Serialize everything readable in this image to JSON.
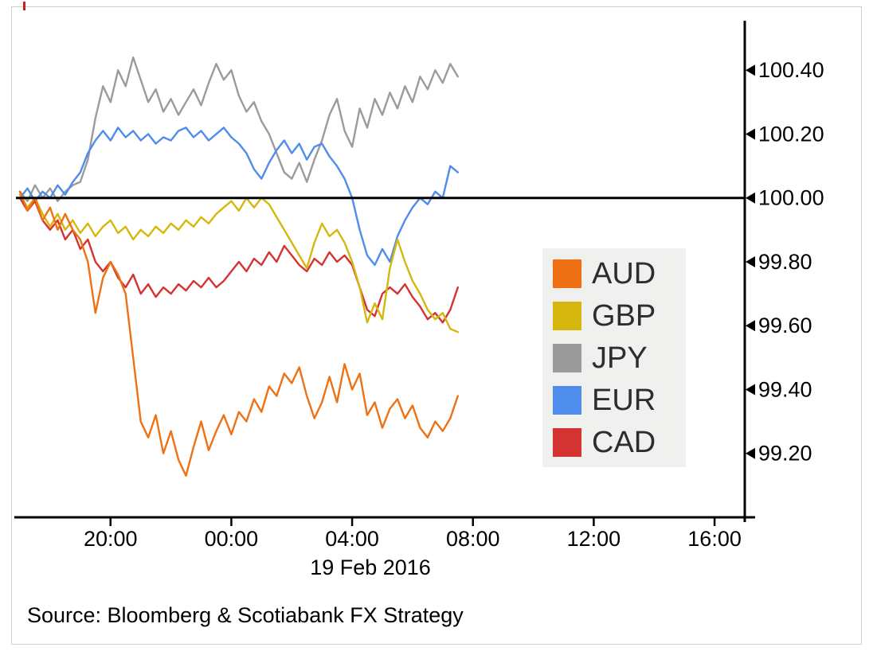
{
  "source_text": "Source: Bloomberg & Scotiabank FX Strategy",
  "chart_data": {
    "type": "line",
    "title": "",
    "xlabel": "19 Feb 2016",
    "ylabel": "",
    "x_axis": {
      "domain_hours": [
        0,
        24
      ],
      "start_time_of_day": "17:00",
      "step_hours": 0.25,
      "ticks": [
        {
          "hour": 3,
          "label": "20:00"
        },
        {
          "hour": 7,
          "label": "00:00"
        },
        {
          "hour": 11,
          "label": "04:00"
        },
        {
          "hour": 15,
          "label": "08:00"
        },
        {
          "hour": 19,
          "label": "12:00"
        },
        {
          "hour": 23,
          "label": "16:00"
        }
      ],
      "date_label": "19 Feb 2016"
    },
    "ylim": [
      99.0,
      100.545
    ],
    "y_ticks": [
      {
        "value": 99.2,
        "label": "99.20"
      },
      {
        "value": 99.4,
        "label": "99.40"
      },
      {
        "value": 99.6,
        "label": "99.60"
      },
      {
        "value": 99.8,
        "label": "99.80"
      },
      {
        "value": 100.0,
        "label": "100.00"
      },
      {
        "value": 100.2,
        "label": "100.20"
      },
      {
        "value": 100.4,
        "label": "100.40"
      }
    ],
    "baseline": {
      "value": 100.0,
      "color": "#000000"
    },
    "grid": false,
    "legend_position": "middle-right",
    "draw_order": [
      2,
      3,
      4,
      1,
      0
    ],
    "series": [
      {
        "name": "AUD",
        "color": "#ee7113",
        "values": [
          100.02,
          99.96,
          100.0,
          99.93,
          99.97,
          99.9,
          99.95,
          99.9,
          99.87,
          99.8,
          99.64,
          99.75,
          99.8,
          99.76,
          99.7,
          99.5,
          99.3,
          99.25,
          99.32,
          99.2,
          99.27,
          99.18,
          99.13,
          99.22,
          99.3,
          99.21,
          99.27,
          99.32,
          99.26,
          99.33,
          99.3,
          99.37,
          99.33,
          99.41,
          99.38,
          99.45,
          99.42,
          99.47,
          99.38,
          99.31,
          99.36,
          99.44,
          99.36,
          99.48,
          99.4,
          99.45,
          99.32,
          99.36,
          99.28,
          99.34,
          99.37,
          99.31,
          99.35,
          99.28,
          99.25,
          99.3,
          99.27,
          99.31,
          99.38
        ]
      },
      {
        "name": "GBP",
        "color": "#d5b70e",
        "values": [
          100.01,
          99.97,
          100.0,
          99.95,
          99.91,
          99.95,
          99.9,
          99.93,
          99.89,
          99.92,
          99.88,
          99.91,
          99.93,
          99.89,
          99.91,
          99.87,
          99.9,
          99.88,
          99.91,
          99.89,
          99.92,
          99.9,
          99.93,
          99.91,
          99.94,
          99.92,
          99.95,
          99.97,
          99.99,
          99.96,
          100.0,
          99.97,
          100.0,
          99.98,
          99.94,
          99.9,
          99.86,
          99.82,
          99.78,
          99.86,
          99.92,
          99.88,
          99.9,
          99.86,
          99.8,
          99.72,
          99.61,
          99.67,
          99.62,
          99.78,
          99.87,
          99.8,
          99.74,
          99.7,
          99.65,
          99.62,
          99.64,
          99.59,
          99.58
        ]
      },
      {
        "name": "JPY",
        "color": "#9b9b9b",
        "values": [
          100.02,
          99.99,
          100.04,
          100.0,
          100.03,
          99.99,
          100.02,
          100.04,
          100.05,
          100.12,
          100.25,
          100.35,
          100.3,
          100.4,
          100.35,
          100.44,
          100.37,
          100.3,
          100.34,
          100.27,
          100.31,
          100.26,
          100.3,
          100.34,
          100.29,
          100.36,
          100.42,
          100.37,
          100.4,
          100.32,
          100.27,
          100.3,
          100.24,
          100.2,
          100.14,
          100.08,
          100.06,
          100.11,
          100.05,
          100.12,
          100.18,
          100.26,
          100.31,
          100.21,
          100.16,
          100.28,
          100.22,
          100.31,
          100.26,
          100.33,
          100.28,
          100.35,
          100.3,
          100.38,
          100.34,
          100.4,
          100.36,
          100.42,
          100.38
        ]
      },
      {
        "name": "EUR",
        "color": "#4e8deb",
        "values": [
          100.0,
          100.03,
          99.99,
          100.02,
          100.0,
          100.04,
          100.01,
          100.05,
          100.08,
          100.14,
          100.18,
          100.21,
          100.18,
          100.22,
          100.19,
          100.21,
          100.18,
          100.2,
          100.17,
          100.19,
          100.18,
          100.21,
          100.22,
          100.19,
          100.21,
          100.18,
          100.2,
          100.22,
          100.19,
          100.17,
          100.14,
          100.09,
          100.06,
          100.11,
          100.15,
          100.18,
          100.14,
          100.17,
          100.12,
          100.16,
          100.17,
          100.13,
          100.1,
          100.06,
          100.0,
          99.9,
          99.82,
          99.79,
          99.84,
          99.8,
          99.88,
          99.93,
          99.97,
          100.0,
          99.98,
          100.02,
          100.0,
          100.1,
          100.08
        ]
      },
      {
        "name": "CAD",
        "color": "#d33331",
        "values": [
          100.0,
          99.96,
          99.99,
          99.93,
          99.9,
          99.93,
          99.87,
          99.9,
          99.84,
          99.87,
          99.8,
          99.77,
          99.8,
          99.75,
          99.72,
          99.76,
          99.7,
          99.73,
          99.69,
          99.72,
          99.7,
          99.73,
          99.71,
          99.74,
          99.72,
          99.75,
          99.72,
          99.74,
          99.77,
          99.8,
          99.77,
          99.81,
          99.79,
          99.83,
          99.8,
          99.85,
          99.82,
          99.79,
          99.77,
          99.81,
          99.79,
          99.83,
          99.8,
          99.82,
          99.79,
          99.72,
          99.65,
          99.63,
          99.7,
          99.72,
          99.7,
          99.73,
          99.69,
          99.66,
          99.62,
          99.64,
          99.61,
          99.65,
          99.72
        ]
      }
    ]
  }
}
